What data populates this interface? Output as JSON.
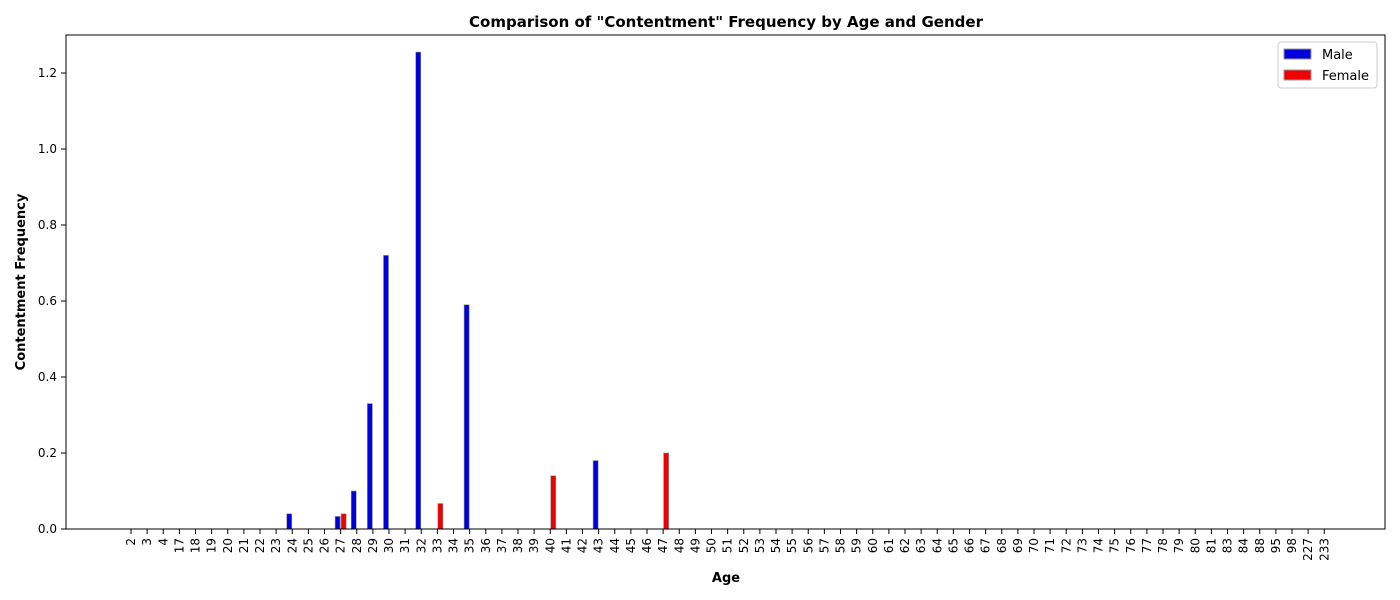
{
  "chart_data": {
    "type": "bar",
    "title": "Comparison of \"Contentment\" Frequency by Age and Gender",
    "xlabel": "Age",
    "ylabel": "Contentment Frequency",
    "ylim": [
      0,
      1.3
    ],
    "yticks": [
      0.0,
      0.2,
      0.4,
      0.6,
      0.8,
      1.0,
      1.2
    ],
    "ytick_labels": [
      "0.0",
      "0.2",
      "0.4",
      "0.6",
      "0.8",
      "1.0",
      "1.2"
    ],
    "grid": false,
    "legend_position": "top-right",
    "categories": [
      "2",
      "3",
      "4",
      "17",
      "18",
      "19",
      "20",
      "21",
      "22",
      "23",
      "24",
      "25",
      "26",
      "27",
      "28",
      "29",
      "30",
      "31",
      "32",
      "33",
      "34",
      "35",
      "36",
      "37",
      "38",
      "39",
      "40",
      "41",
      "42",
      "43",
      "44",
      "45",
      "46",
      "47",
      "48",
      "49",
      "50",
      "51",
      "52",
      "53",
      "54",
      "55",
      "56",
      "57",
      "58",
      "59",
      "60",
      "61",
      "62",
      "63",
      "64",
      "65",
      "66",
      "67",
      "68",
      "69",
      "70",
      "71",
      "72",
      "73",
      "74",
      "75",
      "76",
      "77",
      "78",
      "79",
      "80",
      "81",
      "83",
      "84",
      "88",
      "95",
      "98",
      "227",
      "233"
    ],
    "series": [
      {
        "name": "Male",
        "color": "#0000dd",
        "values": [
          0,
          0,
          0,
          0,
          0,
          0,
          0,
          0,
          0,
          0,
          0.04,
          0,
          0,
          0.033,
          0.1,
          0.33,
          0.72,
          0,
          1.255,
          0,
          0,
          0.59,
          0,
          0,
          0,
          0,
          0,
          0,
          0,
          0.18,
          0,
          0,
          0,
          0,
          0,
          0,
          0,
          0,
          0,
          0,
          0,
          0,
          0,
          0,
          0,
          0,
          0,
          0,
          0,
          0,
          0,
          0,
          0,
          0,
          0,
          0,
          0,
          0,
          0,
          0,
          0,
          0,
          0,
          0,
          0,
          0,
          0,
          0,
          0,
          0,
          0,
          0,
          0,
          0,
          0
        ]
      },
      {
        "name": "Female",
        "color": "#ee0000",
        "values": [
          0,
          0,
          0,
          0,
          0,
          0,
          0,
          0,
          0,
          0,
          0,
          0,
          0,
          0.04,
          0,
          0,
          0,
          0,
          0,
          0.067,
          0,
          0,
          0,
          0,
          0,
          0,
          0.14,
          0,
          0,
          0,
          0,
          0,
          0,
          0.2,
          0,
          0,
          0,
          0,
          0,
          0,
          0,
          0,
          0,
          0,
          0,
          0,
          0,
          0,
          0,
          0,
          0,
          0,
          0,
          0,
          0,
          0,
          0,
          0,
          0,
          0,
          0,
          0,
          0,
          0,
          0,
          0,
          0,
          0,
          0,
          0,
          0,
          0,
          0,
          0,
          0
        ]
      }
    ]
  }
}
